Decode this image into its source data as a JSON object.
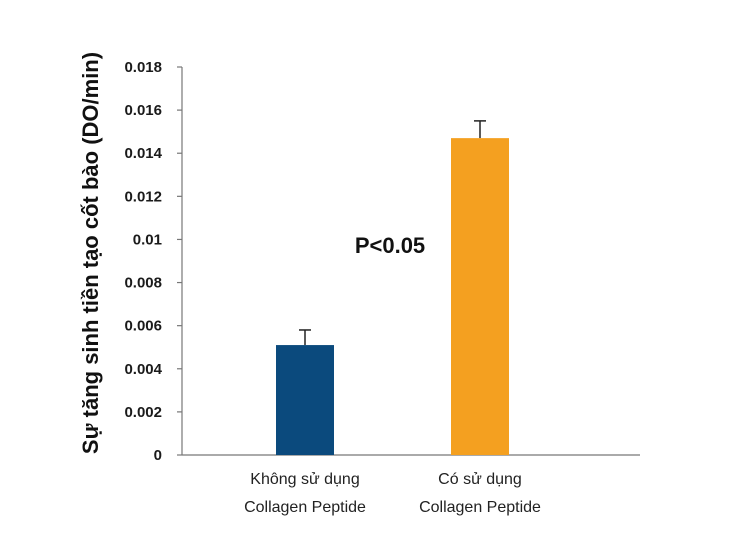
{
  "chart_data": {
    "type": "bar",
    "ylabel": "Sự tăng sinh tiền tạo cốt bào (DO/min)",
    "ylim": [
      0,
      0.018
    ],
    "yticks": [
      {
        "value": 0,
        "label": "0"
      },
      {
        "value": 0.002,
        "label": "0.002"
      },
      {
        "value": 0.004,
        "label": "0.004"
      },
      {
        "value": 0.006,
        "label": "0.006"
      },
      {
        "value": 0.008,
        "label": "0.008"
      },
      {
        "value": 0.01,
        "label": "0.01"
      },
      {
        "value": 0.012,
        "label": "0.012"
      },
      {
        "value": 0.014,
        "label": "0.014"
      },
      {
        "value": 0.016,
        "label": "0.016"
      },
      {
        "value": 0.018,
        "label": "0.018"
      }
    ],
    "categories": [
      {
        "line1": "Không sử dụng",
        "line2": "Collagen Peptide"
      },
      {
        "line1": "Có sử dụng",
        "line2": "Collagen Peptide"
      }
    ],
    "values": [
      0.0051,
      0.0147
    ],
    "error_upper": [
      0.0058,
      0.0155
    ],
    "colors": [
      "#0b4a7d",
      "#f4a020"
    ],
    "annotation": "P<0.05",
    "grid": false
  }
}
